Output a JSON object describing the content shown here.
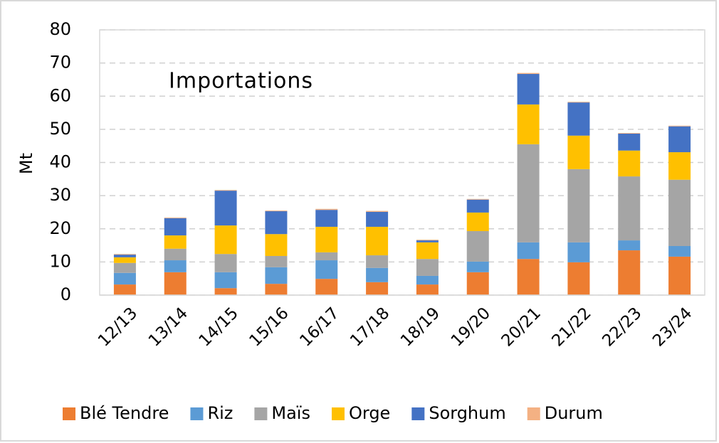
{
  "chart_data": {
    "type": "stacked_bar",
    "annotation": "Importations",
    "y_label": "Mt",
    "categories": [
      "12/13",
      "13/14",
      "14/15",
      "15/16",
      "16/17",
      "17/18",
      "18/19",
      "19/20",
      "20/21",
      "21/22",
      "22/23",
      "23/24"
    ],
    "series": [
      {
        "name": "Blé Tendre",
        "color": "#ed7d31",
        "values": [
          3.2,
          6.9,
          2.1,
          3.4,
          4.9,
          3.9,
          3.2,
          6.9,
          10.9,
          9.9,
          13.5,
          11.6
        ]
      },
      {
        "name": "Riz",
        "color": "#5b9bd5",
        "values": [
          3.5,
          3.6,
          4.8,
          5.0,
          5.6,
          4.3,
          2.6,
          3.2,
          5.0,
          6.0,
          3.0,
          3.2
        ]
      },
      {
        "name": "Maïs",
        "color": "#a5a5a5",
        "values": [
          3.0,
          3.5,
          5.5,
          3.4,
          2.4,
          3.8,
          5.1,
          9.2,
          29.6,
          22.1,
          19.3,
          20.0
        ]
      },
      {
        "name": "Orge",
        "color": "#ffc000",
        "values": [
          1.7,
          4.0,
          8.6,
          6.6,
          7.7,
          8.6,
          5.0,
          5.6,
          12.0,
          10.1,
          7.8,
          8.3
        ]
      },
      {
        "name": "Sorghum",
        "color": "#4472c4",
        "values": [
          0.8,
          5.2,
          10.5,
          6.9,
          5.1,
          4.5,
          0.6,
          3.9,
          9.2,
          10.0,
          5.1,
          7.8
        ]
      },
      {
        "name": "Durum",
        "color": "#f4b183",
        "values": [
          0.2,
          0.2,
          0.2,
          0.2,
          0.3,
          0.3,
          0.2,
          0.2,
          0.3,
          0.2,
          0.2,
          0.2
        ]
      }
    ],
    "ylim": [
      0,
      80
    ],
    "yticks": [
      0,
      10,
      20,
      30,
      40,
      50,
      60,
      70,
      80
    ],
    "grid": true,
    "legend": "bottom"
  }
}
